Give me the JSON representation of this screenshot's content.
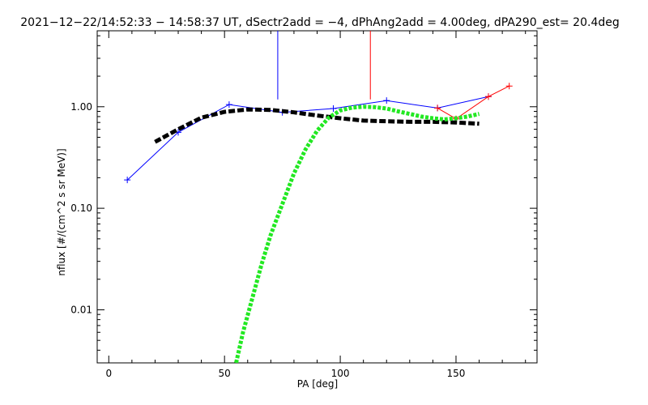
{
  "chart_data": {
    "type": "line",
    "title": "2021−12−22/14:52:33 − 14:58:37 UT, dSectr2add = −4, dPhAng2add = 4.00deg, dPA290_est=  20.4deg",
    "xlabel": "PA [deg]",
    "ylabel": "nflux [#/(cm^2 s sr MeV)]",
    "xlim": [
      -5,
      185
    ],
    "ylim": [
      0.003,
      5.6
    ],
    "yscale": "log",
    "xticks": [
      0,
      50,
      100,
      150
    ],
    "xtick_labels": [
      "0",
      "50",
      "100",
      "150"
    ],
    "yticks": [
      0.01,
      0.1,
      1.0
    ],
    "ytick_labels": [
      "0.01",
      "0.10",
      "1.00"
    ],
    "grid": false,
    "series": [
      {
        "style": "line-plus",
        "color": "#0000ff",
        "x": [
          8,
          30,
          52,
          75,
          97,
          120,
          142,
          164
        ],
        "y": [
          0.19,
          0.56,
          1.05,
          0.88,
          0.96,
          1.15,
          0.97,
          1.26
        ]
      },
      {
        "style": "line-plus",
        "color": "#ff0000",
        "x": [
          142,
          150,
          164,
          173
        ],
        "y": [
          0.97,
          0.76,
          1.26,
          1.6
        ]
      },
      {
        "style": "thick-dashed",
        "color": "#000000",
        "x": [
          20,
          30,
          40,
          50,
          60,
          70,
          80,
          90,
          100,
          110,
          120,
          130,
          140,
          150,
          160
        ],
        "y": [
          0.45,
          0.6,
          0.78,
          0.89,
          0.94,
          0.93,
          0.88,
          0.82,
          0.77,
          0.73,
          0.72,
          0.71,
          0.71,
          0.7,
          0.68
        ]
      },
      {
        "style": "thick-dotted",
        "color": "#22e822",
        "x": [
          55,
          58,
          62,
          66,
          70,
          75,
          80,
          85,
          90,
          95,
          100,
          105,
          110,
          115,
          120,
          125,
          130,
          135,
          140,
          145,
          150,
          155,
          160
        ],
        "y": [
          0.003,
          0.006,
          0.013,
          0.028,
          0.055,
          0.11,
          0.22,
          0.38,
          0.58,
          0.78,
          0.92,
          0.98,
          1.0,
          0.99,
          0.96,
          0.9,
          0.85,
          0.8,
          0.77,
          0.75,
          0.77,
          0.8,
          0.85
        ]
      }
    ],
    "vertical_markers": [
      {
        "color": "#0000ff",
        "x": 73,
        "y_from": 1.18,
        "y_to": 5.6
      },
      {
        "color": "#ff0000",
        "x": 113,
        "y_from": 1.18,
        "y_to": 5.6
      }
    ]
  }
}
